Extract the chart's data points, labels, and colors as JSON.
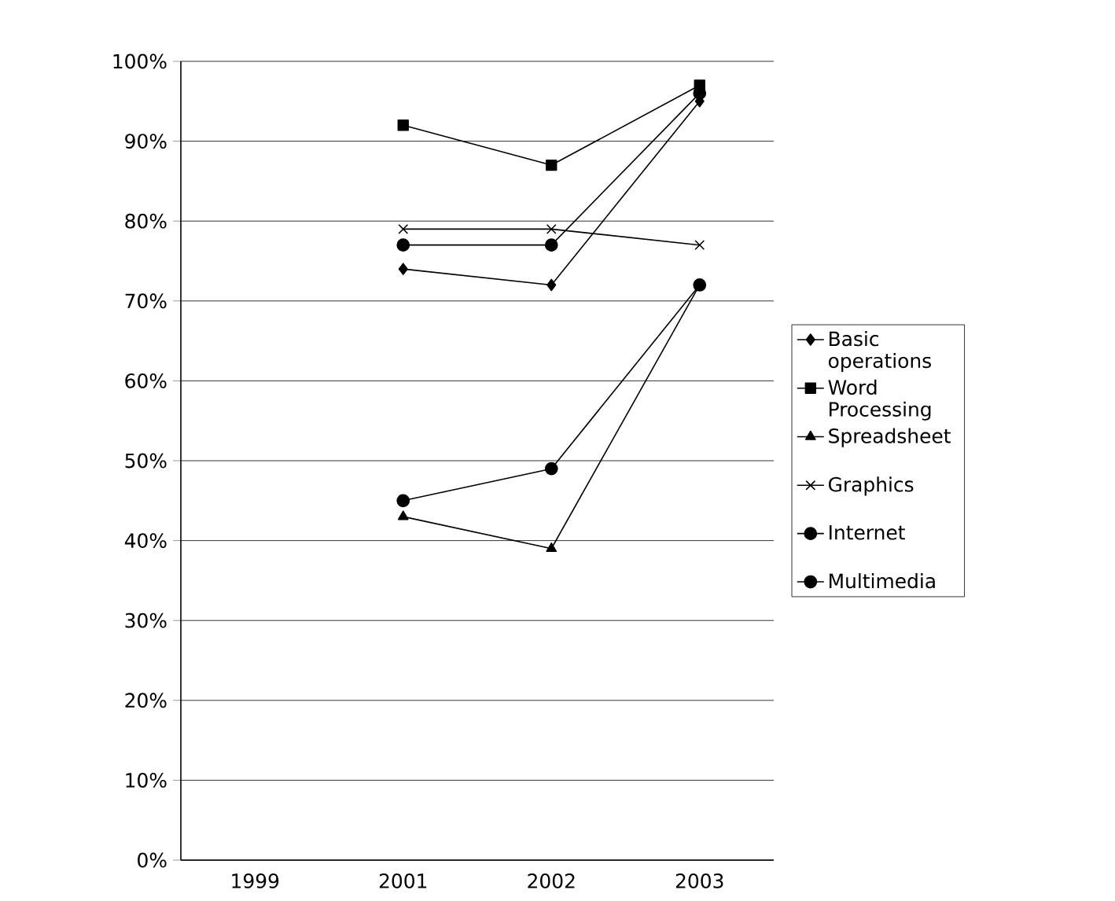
{
  "chart_data": {
    "type": "line",
    "categories": [
      "1999",
      "2001",
      "2002",
      "2003"
    ],
    "series": [
      {
        "name": "Basic operations",
        "color": "#000000",
        "marker": "diamond",
        "values": [
          null,
          74,
          72,
          95
        ]
      },
      {
        "name": "Word Processing",
        "color": "#000000",
        "marker": "square",
        "values": [
          null,
          92,
          87,
          97
        ]
      },
      {
        "name": "Spreadsheet",
        "color": "#000000",
        "marker": "triangle",
        "values": [
          null,
          43,
          39,
          72
        ]
      },
      {
        "name": "Graphics",
        "color": "#000000",
        "marker": "cross",
        "values": [
          null,
          79,
          79,
          77
        ]
      },
      {
        "name": "Internet",
        "color": "#000000",
        "marker": "circle",
        "values": [
          null,
          77,
          77,
          96
        ]
      },
      {
        "name": "Multimedia",
        "color": "#000000",
        "marker": "circle",
        "values": [
          null,
          45,
          49,
          72
        ]
      }
    ],
    "ylim": [
      0,
      100
    ],
    "yticks": [
      {
        "value": 0,
        "label": "0%"
      },
      {
        "value": 10,
        "label": "10%"
      },
      {
        "value": 20,
        "label": "20%"
      },
      {
        "value": 30,
        "label": "30%"
      },
      {
        "value": 40,
        "label": "40%"
      },
      {
        "value": 50,
        "label": "50%"
      },
      {
        "value": 60,
        "label": "60%"
      },
      {
        "value": 70,
        "label": "70%"
      },
      {
        "value": 80,
        "label": "80%"
      },
      {
        "value": 90,
        "label": "90%"
      },
      {
        "value": 100,
        "label": "100%"
      }
    ],
    "grid": "y",
    "legend": "right",
    "line_style": "solid"
  }
}
